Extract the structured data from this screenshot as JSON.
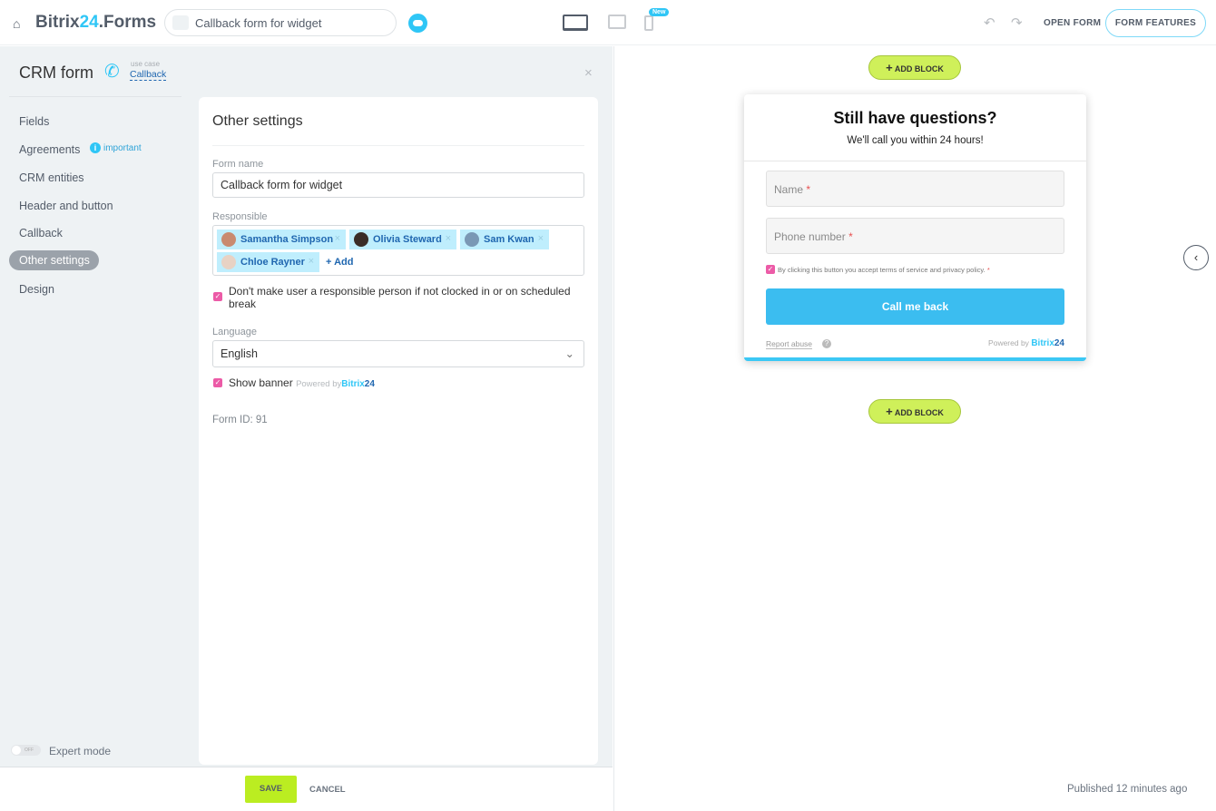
{
  "header": {
    "logo_main": "Bitrix",
    "logo_num": "24",
    "logo_suffix": ".Forms",
    "form_name": "Callback form for widget",
    "new_badge": "New",
    "open_form": "OPEN FORM",
    "form_features": "FORM FEATURES"
  },
  "sidebar": {
    "title": "CRM form",
    "use_case_label": "use case",
    "use_case": "Callback",
    "important": "important",
    "items": [
      {
        "label": "Fields"
      },
      {
        "label": "Agreements"
      },
      {
        "label": "CRM entities"
      },
      {
        "label": "Header and button"
      },
      {
        "label": "Callback"
      },
      {
        "label": "Other settings"
      },
      {
        "label": "Design"
      }
    ],
    "expert_mode": "Expert mode",
    "toggle_state": "OFF"
  },
  "settings": {
    "title": "Other settings",
    "form_name_label": "Form name",
    "form_name_value": "Callback form for widget",
    "responsible_label": "Responsible",
    "responsible": [
      {
        "name": "Samantha Simpson"
      },
      {
        "name": "Olivia Steward"
      },
      {
        "name": "Sam Kwan"
      },
      {
        "name": "Chloe Rayner"
      }
    ],
    "add": "+ Add",
    "dont_make": "Don't make user a responsible person if not clocked in or on scheduled break",
    "language_label": "Language",
    "language": "English",
    "show_banner": "Show banner",
    "powered_by": "Powered by",
    "bitrix": "Bitrix",
    "b24": "24",
    "form_id": "Form ID: 91"
  },
  "footer": {
    "save": "SAVE",
    "cancel": "CANCEL"
  },
  "preview": {
    "add_block": "ADD BLOCK",
    "title": "Still have questions?",
    "subtitle": "We'll call you within 24 hours!",
    "name_ph": "Name",
    "phone_ph": "Phone number",
    "req": "*",
    "agree": "By clicking this button you accept terms of service and privacy policy.",
    "button": "Call me back",
    "report": "Report abuse",
    "powered": "Powered by",
    "bitrix": "Bitrix",
    "b24": "24",
    "published": "Published 12 minutes ago"
  },
  "colors": {
    "accent": "#2fc6f6",
    "save": "#bbed21",
    "checkbox": "#ec5ba7"
  }
}
